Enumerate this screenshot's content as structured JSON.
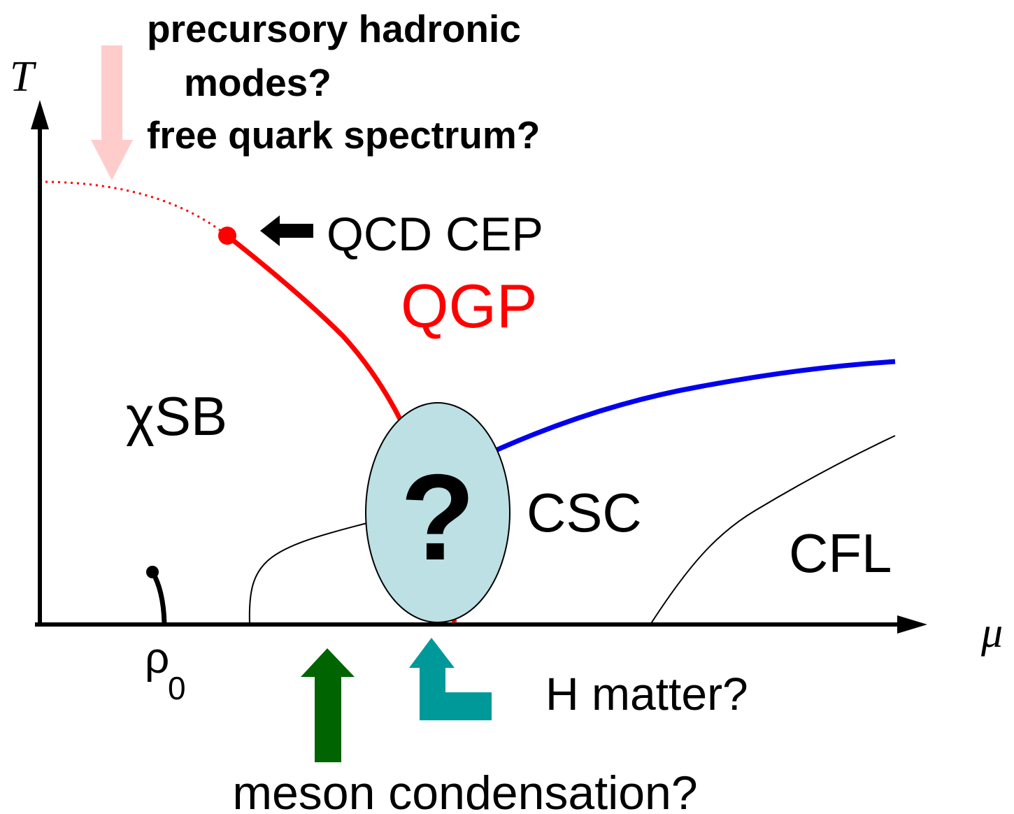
{
  "axes": {
    "y_label": "T",
    "x_label": "μ"
  },
  "annotations": {
    "top_line1": "precursory hadronic",
    "top_line2": "modes?",
    "top_line3": "free quark spectrum?",
    "cep": "QCD CEP",
    "h_matter": "H matter?",
    "meson": "meson condensation?"
  },
  "regions": {
    "qgp": "QGP",
    "chisb": "χSB",
    "csc": "CSC",
    "cfl": "CFL",
    "unknown": "?"
  },
  "rho0": {
    "base": "ρ",
    "sub": "0"
  }
}
